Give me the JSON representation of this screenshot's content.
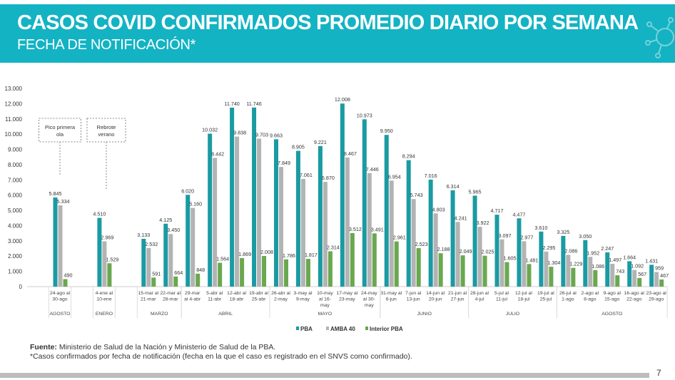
{
  "header": {
    "title": "CASOS COVID CONFIRMADOS PROMEDIO DIARIO POR SEMANA",
    "subtitle": "FECHA DE NOTIFICACIÓN*"
  },
  "footer": {
    "source_label": "Fuente:",
    "source_text": " Ministerio de Salud de la Nación y Ministerio de Salud de la PBA.",
    "note": "*Casos confirmados por fecha de notificación (fecha en la que el caso es registrado en el SNVS como confirmado).",
    "page_number": "7"
  },
  "colors": {
    "header": "#13b3c3",
    "PBA": "#1a9ba3",
    "AMBA 40": "#b3b3b3",
    "Interior PBA": "#6aa84f"
  },
  "chart_data": {
    "type": "bar",
    "title": "CASOS COVID CONFIRMADOS PROMEDIO DIARIO POR SEMANA",
    "ylim": [
      0,
      13000
    ],
    "yticks": [
      "0",
      "1.000",
      "2.000",
      "3.000",
      "4.000",
      "5.000",
      "6.000",
      "7.000",
      "8.000",
      "9.000",
      "10.000",
      "11.000",
      "12.000",
      "13.000"
    ],
    "legend_position": "bottom",
    "categories": [
      {
        "slot": 0,
        "lines": [
          "24-ago al",
          "30-ago"
        ]
      },
      {
        "slot": 2,
        "lines": [
          "4-ene al",
          "10-ene"
        ]
      },
      {
        "slot": 4,
        "lines": [
          "15-mar al",
          "21-mar"
        ]
      },
      {
        "slot": 5,
        "lines": [
          "22-mar al",
          "28-mar"
        ]
      },
      {
        "slot": 6,
        "lines": [
          "29-mar",
          "al 4-abr"
        ]
      },
      {
        "slot": 7,
        "lines": [
          "5-abr al",
          "11-abr"
        ]
      },
      {
        "slot": 8,
        "lines": [
          "12-abr al",
          "18-abr"
        ]
      },
      {
        "slot": 9,
        "lines": [
          "19-abr al",
          "25-abr"
        ]
      },
      {
        "slot": 10,
        "lines": [
          "26-abr al",
          "2-may"
        ]
      },
      {
        "slot": 11,
        "lines": [
          "3-may al",
          "9-may"
        ]
      },
      {
        "slot": 12,
        "lines": [
          "10-may",
          "al 16-",
          "may"
        ]
      },
      {
        "slot": 13,
        "lines": [
          "17-may al",
          "23-may"
        ]
      },
      {
        "slot": 14,
        "lines": [
          "24-may",
          "al 30-",
          "may"
        ]
      },
      {
        "slot": 15,
        "lines": [
          "31-may al",
          "6-jun"
        ]
      },
      {
        "slot": 16,
        "lines": [
          "7-jun al",
          "13-jun"
        ]
      },
      {
        "slot": 17,
        "lines": [
          "14-jun al",
          "20-jun"
        ]
      },
      {
        "slot": 18,
        "lines": [
          "21-jun al",
          "27-jun"
        ]
      },
      {
        "slot": 19,
        "lines": [
          "28-jun al",
          "4-jul"
        ]
      },
      {
        "slot": 20,
        "lines": [
          "5-jul al",
          "11-jul"
        ]
      },
      {
        "slot": 21,
        "lines": [
          "12-jul al",
          "18-jul"
        ]
      },
      {
        "slot": 22,
        "lines": [
          "19-jul al",
          "25-jul"
        ]
      },
      {
        "slot": 23,
        "lines": [
          "26-jul al",
          "1-ago"
        ]
      },
      {
        "slot": 24,
        "lines": [
          "2-ago al",
          "8-ago"
        ]
      },
      {
        "slot": 25,
        "lines": [
          "9-ago al",
          "15-ago"
        ]
      },
      {
        "slot": 26,
        "lines": [
          "16-ago al",
          "22-ago"
        ]
      },
      {
        "slot": 27,
        "lines": [
          "23-ago al",
          "29-ago"
        ]
      }
    ],
    "months": [
      {
        "name": "AGOSTO",
        "from": 0,
        "to": 0
      },
      {
        "name": "ENERO",
        "from": 2,
        "to": 2
      },
      {
        "name": "MARZO",
        "from": 4,
        "to": 5
      },
      {
        "name": "ABRIL",
        "from": 6,
        "to": 9
      },
      {
        "name": "MAYO",
        "from": 10,
        "to": 14
      },
      {
        "name": "JUNIO",
        "from": 15,
        "to": 18
      },
      {
        "name": "JULIO",
        "from": 19,
        "to": 22
      },
      {
        "name": "AGOSTO",
        "from": 23,
        "to": 27
      }
    ],
    "series": [
      {
        "name": "PBA",
        "values": [
          5845,
          4510,
          3133,
          4125,
          6020,
          10032,
          11740,
          11746,
          9663,
          8905,
          9221,
          12008,
          10973,
          9950,
          8294,
          7016,
          6314,
          5965,
          4717,
          4477,
          3610,
          3325,
          3050,
          2247,
          1664,
          1431
        ]
      },
      {
        "name": "AMBA 40",
        "values": [
          5334,
          2969,
          2532,
          3450,
          5160,
          8442,
          9838,
          9703,
          7849,
          7061,
          6870,
          8467,
          7446,
          6954,
          5743,
          4803,
          4241,
          3922,
          3097,
          2977,
          2295,
          2086,
          1952,
          1497,
          1092,
          959
        ]
      },
      {
        "name": "Interior PBA",
        "values": [
          490,
          1529,
          591,
          664,
          848,
          1564,
          1869,
          2008,
          1786,
          1817,
          2314,
          3512,
          3491,
          2961,
          2523,
          2188,
          2049,
          2025,
          1605,
          1481,
          1304,
          1229,
          1086,
          743,
          567,
          467
        ]
      }
    ],
    "annotations": [
      {
        "lines": [
          "Pico primera",
          "ola"
        ],
        "slot": 0
      },
      {
        "lines": [
          "Rebrote",
          "verano"
        ],
        "slot": 2
      }
    ]
  }
}
